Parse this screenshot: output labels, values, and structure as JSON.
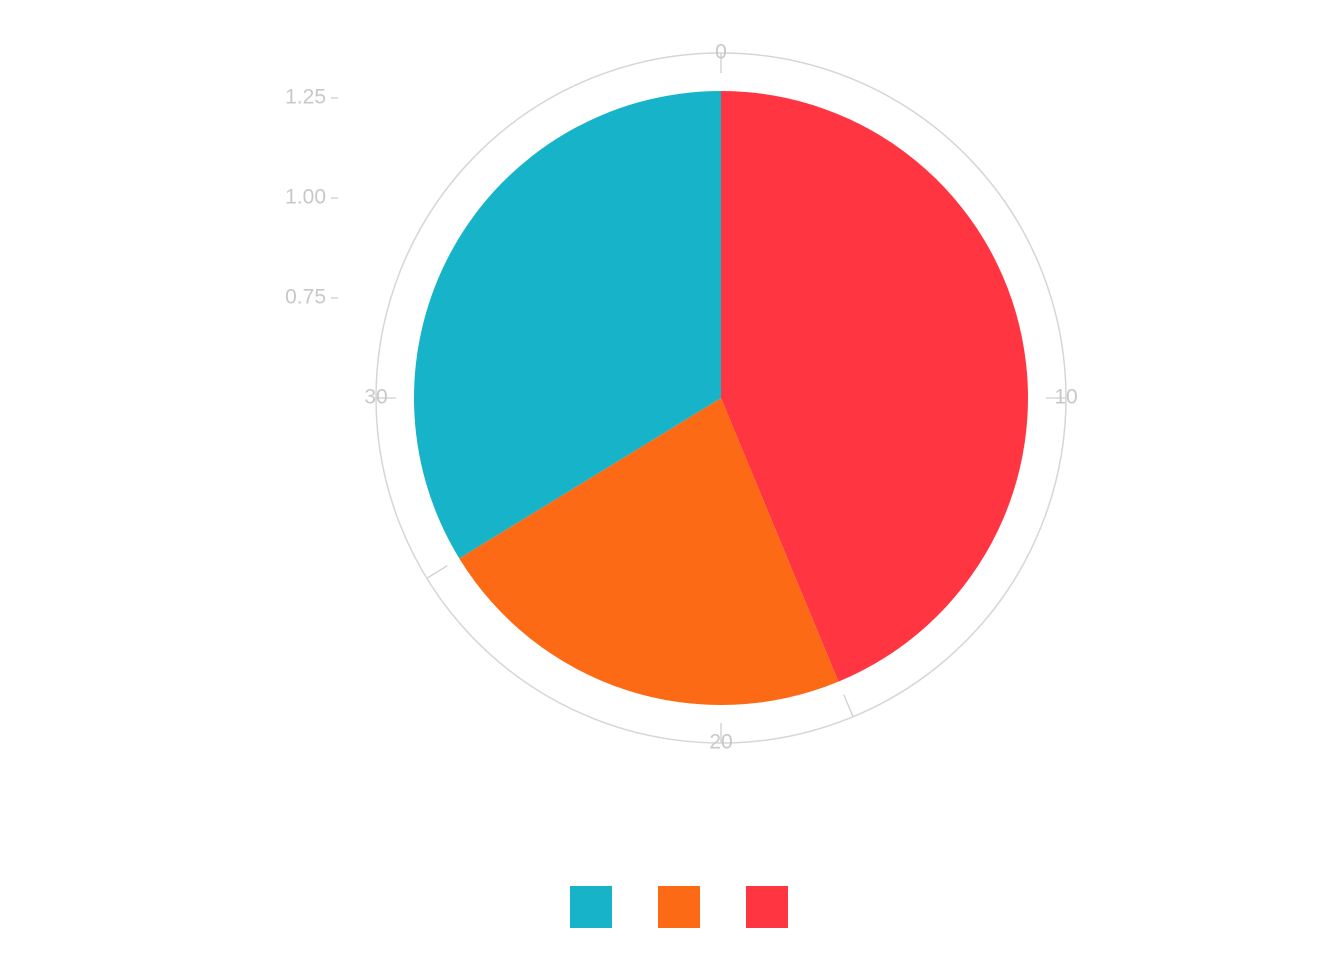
{
  "chart_data": {
    "type": "pie",
    "title": "",
    "angular_axis": {
      "range": [
        0,
        40
      ],
      "direction": "clockwise",
      "rotation": 0,
      "ticks": [
        0,
        10,
        20,
        30
      ],
      "tick_labels": [
        "0",
        "10",
        "20",
        "30"
      ]
    },
    "radial_axis": {
      "range": [
        0.5,
        1.4
      ],
      "ticks": [
        0.75,
        1.0,
        1.25
      ],
      "tick_labels": [
        "0.75",
        "1.00",
        "1.25"
      ]
    },
    "values": [
      17.5,
      9.0,
      13.5
    ],
    "colors": [
      "#ff3541",
      "#fc6a16",
      "#17b3c9"
    ],
    "grid": true,
    "legend": {
      "position": "bottom",
      "entries": [
        {
          "color": "#17b3c9"
        },
        {
          "color": "#fc6a16"
        },
        {
          "color": "#ff3541"
        }
      ]
    }
  }
}
